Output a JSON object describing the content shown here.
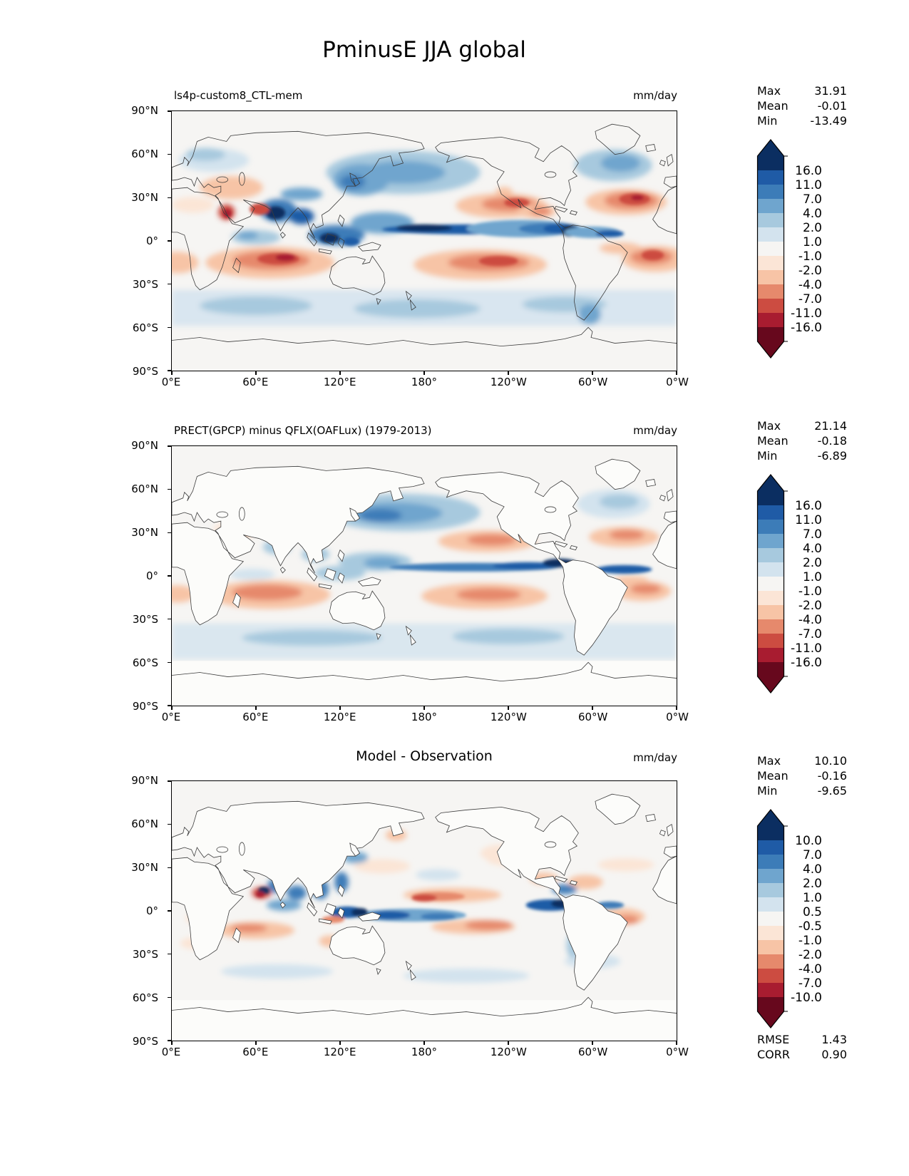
{
  "figure_title": "PminusE JJA global",
  "axis": {
    "x_ticks": [
      "0°E",
      "60°E",
      "120°E",
      "180°",
      "120°W",
      "60°W",
      "0°W"
    ],
    "y_ticks": [
      "90°N",
      "60°N",
      "30°N",
      "0°",
      "30°S",
      "60°S",
      "90°S"
    ]
  },
  "palette": {
    "colors13": [
      "#0b2e61",
      "#1f5ba6",
      "#3c7cb8",
      "#6fa5ce",
      "#a7c9de",
      "#d3e3ee",
      "#f6f5f3",
      "#fbe5d6",
      "#f7c4a6",
      "#e6896c",
      "#cc4c41",
      "#a81c30",
      "#67081d"
    ]
  },
  "panels": [
    {
      "title": "ls4p-custom8_CTL-mem",
      "units": "mm/day",
      "stats": [
        [
          "Max",
          "31.91"
        ],
        [
          "Mean",
          "-0.01"
        ],
        [
          "Min",
          "-13.49"
        ]
      ],
      "colorbar_labels": [
        "16.0",
        "11.0",
        "7.0",
        "4.0",
        "2.0",
        "1.0",
        "-1.0",
        "-2.0",
        "-4.0",
        "-7.0",
        "-11.0",
        "-16.0"
      ]
    },
    {
      "title": "PRECT(GPCP) minus QFLX(OAFLux) (1979-2013)",
      "units": "mm/day",
      "stats": [
        [
          "Max",
          "21.14"
        ],
        [
          "Mean",
          "-0.18"
        ],
        [
          "Min",
          "-6.89"
        ]
      ],
      "colorbar_labels": [
        "16.0",
        "11.0",
        "7.0",
        "4.0",
        "2.0",
        "1.0",
        "-1.0",
        "-2.0",
        "-4.0",
        "-7.0",
        "-11.0",
        "-16.0"
      ]
    },
    {
      "title": "Model - Observation",
      "units": "mm/day",
      "stats": [
        [
          "Max",
          "10.10"
        ],
        [
          "Mean",
          "-0.16"
        ],
        [
          "Min",
          "-9.65"
        ]
      ],
      "extra_stats": [
        [
          "RMSE",
          "1.43"
        ],
        [
          "CORR",
          "0.90"
        ]
      ],
      "colorbar_labels": [
        "10.0",
        "7.0",
        "4.0",
        "2.0",
        "1.0",
        "0.5",
        "-0.5",
        "-1.0",
        "-2.0",
        "-4.0",
        "-7.0",
        "-10.0"
      ]
    }
  ],
  "chart_data": {
    "type": "heatmap",
    "subtype": "global lat-lon filled-contour maps (3 stacked panels)",
    "figure_title": "PminusE JJA global",
    "variable": "PminusE (precipitation minus evaporation)",
    "season": "JJA",
    "units": "mm/day",
    "projection": "equirectangular, longitudes 0°E to 0°W (0-360), latitudes 90°N to 90°S",
    "x_tick_labels": [
      "0°E",
      "60°E",
      "120°E",
      "180°",
      "120°W",
      "60°W",
      "0°W"
    ],
    "y_tick_labels": [
      "90°N",
      "60°N",
      "30°N",
      "0°",
      "30°S",
      "60°S",
      "90°S"
    ],
    "colormap": "RdBu diverging, blue = positive (P>E), red = negative (P<E)",
    "legend_position": "right of each panel, vertical discrete colorbar with out-of-range arrows",
    "panels": [
      {
        "title": "ls4p-custom8_CTL-mem",
        "role": "model",
        "max": 31.91,
        "mean": -0.01,
        "min": -13.49,
        "contour_levels": [
          -16,
          -11,
          -7,
          -4,
          -2,
          -1,
          1,
          2,
          4,
          7,
          11,
          16
        ]
      },
      {
        "title": "PRECT(GPCP) minus QFLX(OAFLux) (1979-2013)",
        "role": "observation",
        "max": 21.14,
        "mean": -0.18,
        "min": -6.89,
        "contour_levels": [
          -16,
          -11,
          -7,
          -4,
          -2,
          -1,
          1,
          2,
          4,
          7,
          11,
          16
        ],
        "note": "ocean-only data; land masked white"
      },
      {
        "title": "Model - Observation",
        "role": "difference",
        "max": 10.1,
        "mean": -0.16,
        "min": -9.65,
        "rmse": 1.43,
        "corr": 0.9,
        "contour_levels": [
          -10,
          -7,
          -4,
          -2,
          -1,
          -0.5,
          0.5,
          1,
          2,
          4,
          7,
          10
        ],
        "note": "land masked white"
      }
    ]
  }
}
